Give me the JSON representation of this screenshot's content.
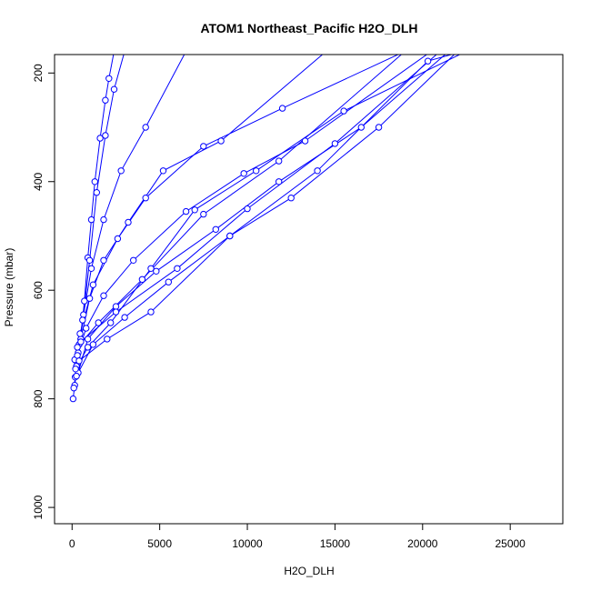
{
  "chart_data": {
    "type": "line",
    "title": "ATOM1 Northeast_Pacific H2O_DLH",
    "xlabel": "H2O_DLH",
    "ylabel": "Pressure (mbar)",
    "xlim": [
      -1000,
      28000
    ],
    "ylim": [
      1030,
      166
    ],
    "y_reversed": true,
    "x_ticks": [
      "0",
      "5000",
      "10000",
      "15000",
      "20000",
      "25000"
    ],
    "x_tick_values": [
      0,
      5000,
      10000,
      15000,
      20000,
      25000
    ],
    "y_ticks": [
      "200",
      "400",
      "600",
      "800",
      "1000"
    ],
    "y_tick_values": [
      200,
      400,
      600,
      800,
      1000
    ],
    "series_color": "#0000ff",
    "marker": "open-circle",
    "series": [
      {
        "x": [
          60,
          150,
          300,
          500,
          700,
          900,
          1100,
          1300,
          1600,
          1900,
          2100,
          2400
        ],
        "y": [
          800,
          775,
          735,
          690,
          620,
          540,
          470,
          400,
          320,
          250,
          210,
          160
        ]
      },
      {
        "x": [
          100,
          250,
          400,
          650,
          1000,
          1400,
          1900,
          2400,
          3000
        ],
        "y": [
          780,
          745,
          700,
          645,
          545,
          420,
          315,
          230,
          160
        ]
      },
      {
        "x": [
          180,
          350,
          600,
          1100,
          1800,
          2800,
          4200,
          6500
        ],
        "y": [
          760,
          715,
          655,
          560,
          470,
          380,
          300,
          160
        ]
      },
      {
        "x": [
          250,
          500,
          1000,
          1800,
          3200,
          5200,
          8500,
          14500
        ],
        "y": [
          740,
          690,
          615,
          545,
          475,
          380,
          325,
          160
        ]
      },
      {
        "x": [
          150,
          450,
          1200,
          2600,
          4200,
          7500,
          12000,
          19000
        ],
        "y": [
          728,
          680,
          590,
          505,
          430,
          335,
          265,
          160
        ]
      },
      {
        "x": [
          300,
          800,
          1800,
          3500,
          6500,
          9800,
          13300,
          20500
        ],
        "y": [
          720,
          670,
          610,
          545,
          455,
          385,
          325,
          160
        ]
      },
      {
        "x": [
          350,
          900,
          2500,
          4800,
          8200,
          11800,
          16500,
          21500
        ],
        "y": [
          752,
          690,
          630,
          565,
          488,
          400,
          300,
          160
        ]
      },
      {
        "x": [
          250,
          1200,
          3000,
          5500,
          9000,
          12500,
          17500,
          22000
        ],
        "y": [
          758,
          700,
          650,
          585,
          500,
          430,
          300,
          160
        ]
      },
      {
        "x": [
          200,
          900,
          2200,
          4500,
          7000,
          10500,
          15500,
          22500
        ],
        "y": [
          745,
          705,
          660,
          560,
          452,
          380,
          270,
          160
        ]
      },
      {
        "x": [
          400,
          2000,
          4500,
          9000,
          14000,
          20300,
          22300
        ],
        "y": [
          730,
          690,
          640,
          500,
          380,
          178,
          160
        ]
      },
      {
        "x": [
          300,
          1500,
          4000,
          7500,
          11800,
          19000
        ],
        "y": [
          705,
          660,
          580,
          460,
          362,
          160
        ]
      },
      {
        "x": [
          500,
          2500,
          6000,
          10000,
          15000,
          21000
        ],
        "y": [
          695,
          640,
          560,
          450,
          330,
          160
        ]
      }
    ]
  }
}
